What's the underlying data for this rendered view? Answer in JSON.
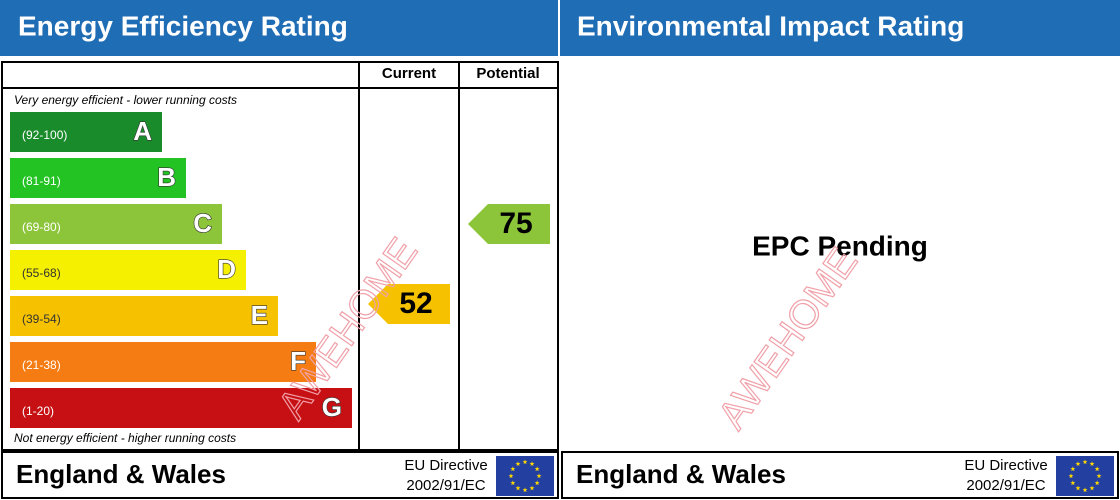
{
  "left": {
    "title": "Energy Efficiency Rating",
    "columns": [
      "Current",
      "Potential"
    ],
    "top_note": "Very energy efficient - lower running costs",
    "bottom_note": "Not energy efficient - higher running costs",
    "bands": [
      {
        "range": "(92-100)",
        "letter": "A",
        "color": "#1a8b2a"
      },
      {
        "range": "(81-91)",
        "letter": "B",
        "color": "#22c323"
      },
      {
        "range": "(69-80)",
        "letter": "C",
        "color": "#8cc43a"
      },
      {
        "range": "(55-68)",
        "letter": "D",
        "color": "#f5f000"
      },
      {
        "range": "(39-54)",
        "letter": "E",
        "color": "#f6c200"
      },
      {
        "range": "(21-38)",
        "letter": "F",
        "color": "#f47c12"
      },
      {
        "range": "(1-20)",
        "letter": "G",
        "color": "#c61013"
      }
    ],
    "current": {
      "value": 52,
      "color": "#f6c200"
    },
    "potential": {
      "value": 75,
      "color": "#8cc43a"
    },
    "footer": {
      "region": "England & Wales",
      "directive": "EU Directive",
      "code": "2002/91/EC"
    }
  },
  "right": {
    "title": "Environmental Impact Rating",
    "message": "EPC Pending",
    "footer": {
      "region": "England & Wales",
      "directive": "EU Directive",
      "code": "2002/91/EC"
    }
  },
  "watermark": "AWEHOME"
}
